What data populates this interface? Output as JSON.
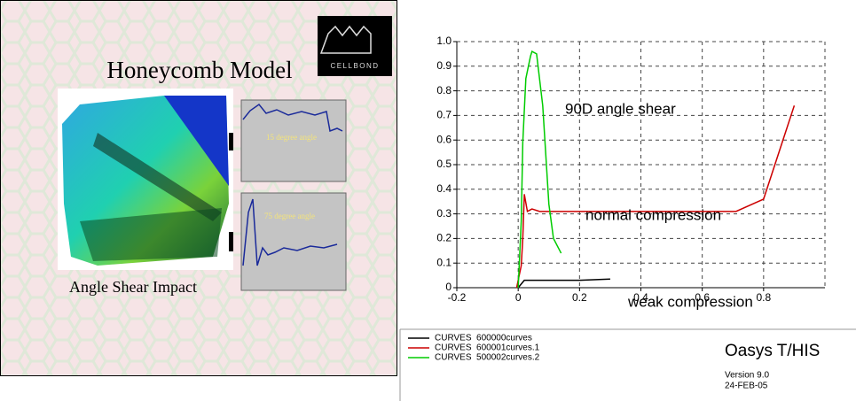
{
  "slide": {
    "logo": "CELLBOND",
    "title": "Honeycomb Model",
    "caption": "Angle Shear Impact",
    "inset_labels": [
      "15 degree angle",
      "75 degree angle"
    ]
  },
  "chart_data": {
    "type": "line",
    "xlim": [
      -0.2,
      1.0
    ],
    "ylim": [
      0,
      1.0
    ],
    "xticks": [
      -0.2,
      0,
      0.2,
      0.4,
      0.6,
      0.8
    ],
    "yticks": [
      0,
      0.1,
      0.2,
      0.3,
      0.4,
      0.5,
      0.6,
      0.7,
      0.8,
      0.9,
      {
        "value": 1,
        "label": "1.0"
      }
    ],
    "grid": true,
    "annotations": [
      "90D angle shear",
      "normal compression",
      "weak compression"
    ],
    "series": [
      {
        "name": "CURVES  600000curves",
        "color": "#000000",
        "x": [
          0,
          0.02,
          0.05,
          0.1,
          0.2,
          0.3
        ],
        "values": [
          0,
          0.03,
          0.03,
          0.03,
          0.03,
          0.035
        ]
      },
      {
        "name": "CURVES  600001curves.1",
        "color": "#cc0000",
        "x": [
          -0.005,
          0.01,
          0.015,
          0.02,
          0.03,
          0.045,
          0.07,
          0.1,
          0.16,
          0.62,
          0.71,
          0.8,
          0.9
        ],
        "values": [
          0,
          0.09,
          0.2,
          0.38,
          0.31,
          0.32,
          0.31,
          0.31,
          0.31,
          0.31,
          0.31,
          0.36,
          0.74
        ]
      },
      {
        "name": "CURVES  500002curves.2",
        "color": "#00cc00",
        "x": [
          0,
          0.01,
          0.015,
          0.025,
          0.04,
          0.045,
          0.06,
          0.08,
          0.1,
          0.115,
          0.14
        ],
        "values": [
          0,
          0.27,
          0.59,
          0.85,
          0.94,
          0.96,
          0.95,
          0.74,
          0.34,
          0.2,
          0.14
        ]
      }
    ]
  },
  "footer": {
    "product": "Oasys T/HIS",
    "version": "Version 9.0",
    "date": "24-FEB-05"
  }
}
